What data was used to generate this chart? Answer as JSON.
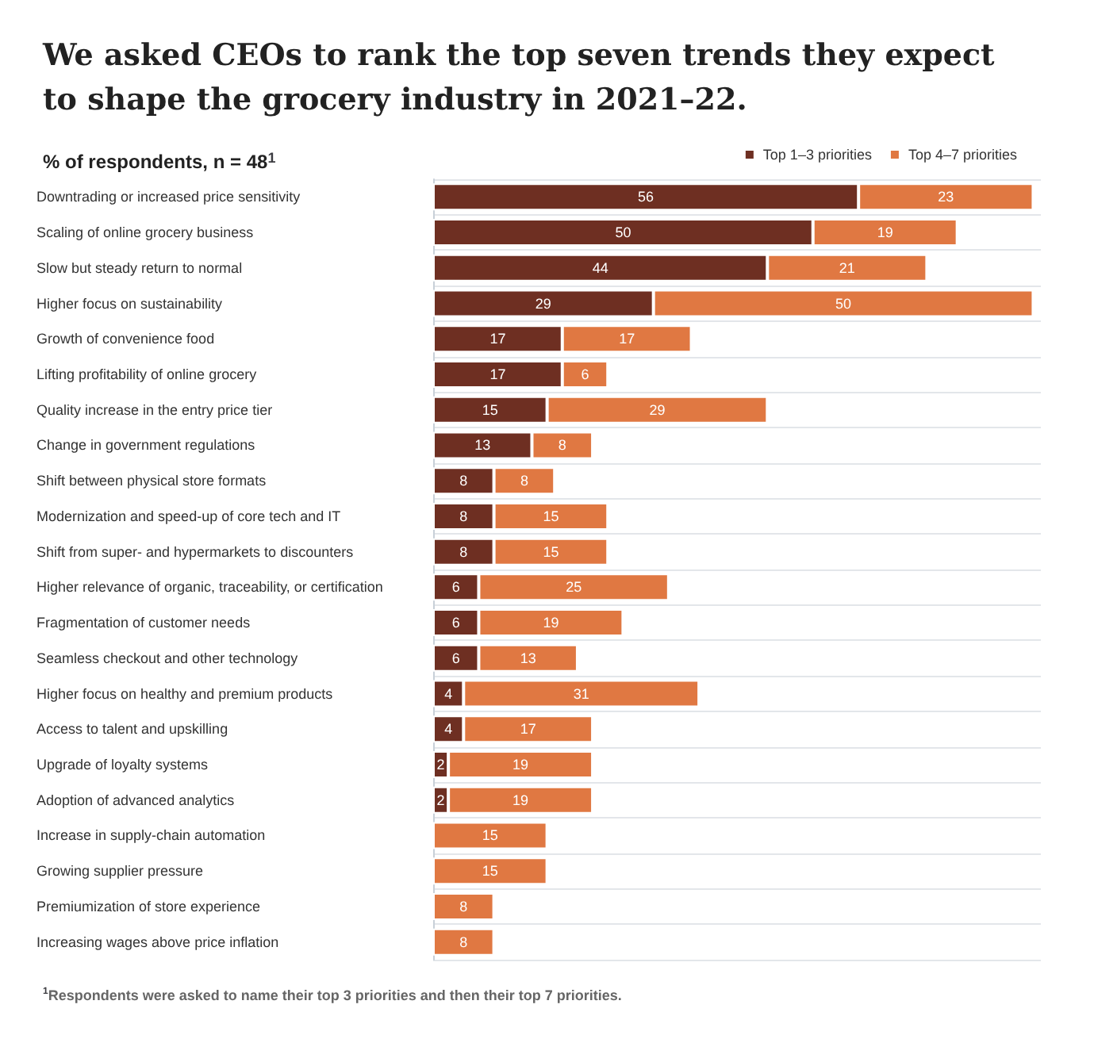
{
  "chart_data": {
    "type": "bar",
    "orientation": "horizontal",
    "stacked": true,
    "data_labels": true,
    "grid": "y",
    "legend": "top right",
    "title": "We asked CEOs to rank the top seven trends they expect to shape the grocery industry in 2021–22.",
    "ylabel": "% of respondents, n = 48$^{1}$",
    "annotations": [
      "$^{1}$Respondents were asked to name their top 3 priorities and then their top 7 priorities."
    ],
    "categories": [
      "Downtrading or increased price sensitivity",
      "Scaling of online grocery business",
      "Slow but steady return to normal",
      "Higher focus on sustainability",
      "Growth of convenience food",
      "Lifting profitability of online grocery",
      "Quality increase in the entry price tier",
      "Change in government regulations",
      "Shift between physical store formats",
      "Modernization and speed-up of core tech and IT",
      "Shift from super- and hypermarkets to discounters",
      "Higher relevance of organic, traceability, or certification",
      "Fragmentation of customer needs",
      "Seamless checkout and other technology",
      "Higher focus on healthy and premium products",
      "Access to talent and upskilling",
      "Upgrade of loyalty systems",
      "Adoption of advanced analytics",
      "Increase in supply-chain automation",
      "Growing supplier pressure",
      "Premiumization of store experience",
      "Increasing wages above price inflation"
    ],
    "series": [
      {
        "name": "Top 1–3 priorities",
        "color": "#6e2f22",
        "values": [
          56,
          50,
          44,
          29,
          17,
          17,
          15,
          13,
          8,
          8,
          8,
          6,
          6,
          6,
          4,
          4,
          2,
          2,
          null,
          null,
          null,
          null
        ]
      },
      {
        "name": "Top 4–7 priorities",
        "color": "#e07842",
        "values": [
          23,
          19,
          21,
          50,
          17,
          6,
          29,
          8,
          8,
          15,
          15,
          25,
          19,
          13,
          31,
          17,
          19,
          19,
          15,
          15,
          8,
          8
        ]
      }
    ]
  }
}
